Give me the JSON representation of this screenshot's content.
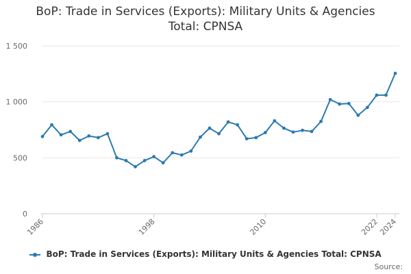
{
  "chart_data": {
    "type": "line",
    "title_line1": "BoP: Trade in Services (Exports): Military Units & Agencies",
    "title_line2": "Total: CPNSA",
    "source_label": "Source:",
    "colors": {
      "series": "#2a7ab0",
      "grid": "#e6e6e6",
      "axis": "#cccccc"
    },
    "ylim": [
      0,
      1500
    ],
    "yticks": [
      {
        "value": 0,
        "label": "0"
      },
      {
        "value": 500,
        "label": "500"
      },
      {
        "value": 1000,
        "label": "1 000"
      },
      {
        "value": 1500,
        "label": "1 500"
      }
    ],
    "xlim": [
      1986,
      2024
    ],
    "xticks": [
      {
        "value": 1986,
        "label": "1986"
      },
      {
        "value": 1998,
        "label": "1998"
      },
      {
        "value": 2010,
        "label": "2010"
      },
      {
        "value": 2022,
        "label": "2022"
      },
      {
        "value": 2024,
        "label": "2024"
      }
    ],
    "grid": true,
    "legend_position": "bottom",
    "series": [
      {
        "name": "BoP: Trade in Services (Exports): Military Units & Agencies Total: CPNSA",
        "x": [
          1986,
          1987,
          1988,
          1989,
          1990,
          1991,
          1992,
          1993,
          1994,
          1995,
          1996,
          1997,
          1998,
          1999,
          2000,
          2001,
          2002,
          2003,
          2004,
          2005,
          2006,
          2007,
          2008,
          2009,
          2010,
          2011,
          2012,
          2013,
          2014,
          2015,
          2016,
          2017,
          2018,
          2019,
          2020,
          2021,
          2022,
          2023,
          2024
        ],
        "values": [
          690,
          795,
          705,
          735,
          655,
          695,
          680,
          715,
          500,
          475,
          420,
          475,
          510,
          455,
          545,
          525,
          560,
          685,
          765,
          715,
          820,
          795,
          670,
          680,
          725,
          830,
          765,
          730,
          745,
          735,
          825,
          1020,
          980,
          985,
          880,
          950,
          1060,
          1060,
          1255
        ]
      }
    ]
  }
}
